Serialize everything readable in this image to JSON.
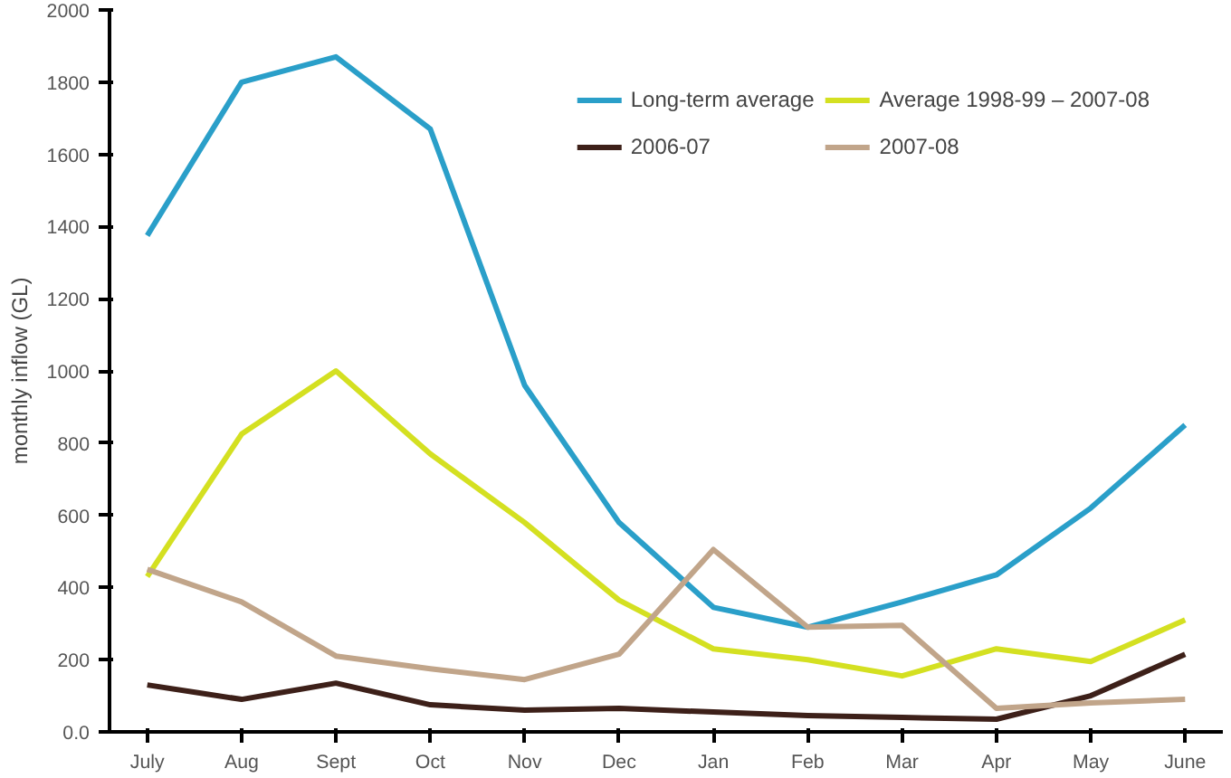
{
  "chart_data": {
    "type": "line",
    "ylabel": "monthly inflow (GL)",
    "categories": [
      "July",
      "Aug",
      "Sept",
      "Oct",
      "Nov",
      "Dec",
      "Jan",
      "Feb",
      "Mar",
      "Apr",
      "May",
      "June"
    ],
    "series": [
      {
        "name": "Long-term average",
        "color": "#2a9fc9",
        "values": [
          1375,
          1800,
          1870,
          1670,
          960,
          580,
          345,
          290,
          360,
          435,
          620,
          850
        ]
      },
      {
        "name": "2006-07",
        "color": "#3d2019",
        "values": [
          130,
          90,
          135,
          75,
          60,
          65,
          55,
          45,
          40,
          35,
          100,
          215
        ]
      },
      {
        "name": "Average 1998-99 – 2007-08",
        "color": "#d4e021",
        "values": [
          430,
          825,
          1000,
          770,
          580,
          365,
          230,
          200,
          155,
          230,
          195,
          310
        ]
      },
      {
        "name": "2007-08",
        "color": "#c1a58a",
        "values": [
          450,
          360,
          210,
          175,
          145,
          215,
          505,
          290,
          295,
          65,
          80,
          90
        ]
      }
    ],
    "ylim": [
      0,
      2000
    ],
    "yticks": [
      {
        "value": 0,
        "label": "0.0"
      },
      200,
      400,
      600,
      800,
      1000,
      1200,
      1400,
      1600,
      1800,
      2000
    ],
    "grid": false,
    "legend": "top right",
    "marker": "none",
    "line_style": "solid"
  }
}
